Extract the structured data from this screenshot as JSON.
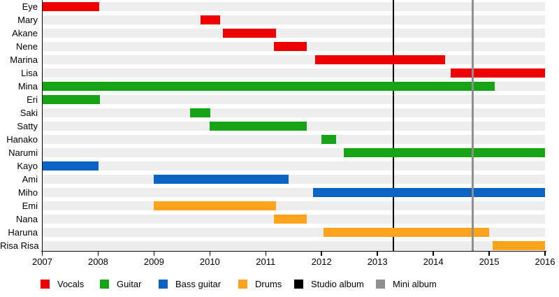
{
  "page": {
    "background_color": "#ffffff",
    "description": "Band member tenure timeline (gantt-style) with album release markers"
  },
  "chart_data": {
    "type": "bar",
    "subtype": "horizontal-gantt-timeline",
    "title": "",
    "xlabel": "",
    "ylabel": "",
    "x_axis": {
      "min": 2007,
      "max": 2016,
      "ticks": [
        "2007",
        "2008",
        "2009",
        "2010",
        "2011",
        "2012",
        "2013",
        "2014",
        "2015",
        "2016"
      ]
    },
    "row_band_color": "#EDEDED",
    "members": [
      {
        "name": "Eye",
        "role": "Vocals",
        "start": 2007.0,
        "end": 2008.02
      },
      {
        "name": "Mary",
        "role": "Vocals",
        "start": 2009.83,
        "end": 2010.18
      },
      {
        "name": "Akane",
        "role": "Vocals",
        "start": 2010.23,
        "end": 2011.18
      },
      {
        "name": "Nene",
        "role": "Vocals",
        "start": 2011.15,
        "end": 2011.73
      },
      {
        "name": "Marina",
        "role": "Vocals",
        "start": 2011.88,
        "end": 2014.21
      },
      {
        "name": "Lisa",
        "role": "Vocals",
        "start": 2014.31,
        "end": 2016.0
      },
      {
        "name": "Mina",
        "role": "Guitar",
        "start": 2007.0,
        "end": 2015.1
      },
      {
        "name": "Eri",
        "role": "Guitar",
        "start": 2007.0,
        "end": 2008.03
      },
      {
        "name": "Saki",
        "role": "Guitar",
        "start": 2009.65,
        "end": 2010.01
      },
      {
        "name": "Satty",
        "role": "Guitar",
        "start": 2010.0,
        "end": 2011.73
      },
      {
        "name": "Hanako",
        "role": "Guitar",
        "start": 2012.0,
        "end": 2012.26
      },
      {
        "name": "Narumi",
        "role": "Guitar",
        "start": 2012.4,
        "end": 2016.0
      },
      {
        "name": "Kayo",
        "role": "Bass guitar",
        "start": 2007.0,
        "end": 2008.01
      },
      {
        "name": "Ami",
        "role": "Bass guitar",
        "start": 2009.0,
        "end": 2011.41
      },
      {
        "name": "Miho",
        "role": "Bass guitar",
        "start": 2011.85,
        "end": 2016.0
      },
      {
        "name": "Emi",
        "role": "Drums",
        "start": 2009.0,
        "end": 2011.18
      },
      {
        "name": "Nana",
        "role": "Drums",
        "start": 2011.15,
        "end": 2011.73
      },
      {
        "name": "Haruna",
        "role": "Drums",
        "start": 2012.03,
        "end": 2015.0
      },
      {
        "name": "Risa Risa",
        "role": "Drums",
        "start": 2015.06,
        "end": 2016.0
      }
    ],
    "events": [
      {
        "label": "Studio album",
        "year": 2013.28,
        "color": "#000000",
        "line_width": 2,
        "layer": "back"
      },
      {
        "label": "Mini album",
        "year": 2014.71,
        "color": "#8F8F8F",
        "line_width": 3,
        "layer": "front"
      }
    ],
    "legend": [
      {
        "label": "Vocals",
        "color": "#EE0000"
      },
      {
        "label": "Guitar",
        "color": "#16A416"
      },
      {
        "label": "Bass guitar",
        "color": "#0B63C4"
      },
      {
        "label": "Drums",
        "color": "#FCA31E"
      },
      {
        "label": "Studio album",
        "color": "#000000"
      },
      {
        "label": "Mini album",
        "color": "#8F8F8F"
      }
    ],
    "legend_position": "bottom",
    "grid": false
  }
}
